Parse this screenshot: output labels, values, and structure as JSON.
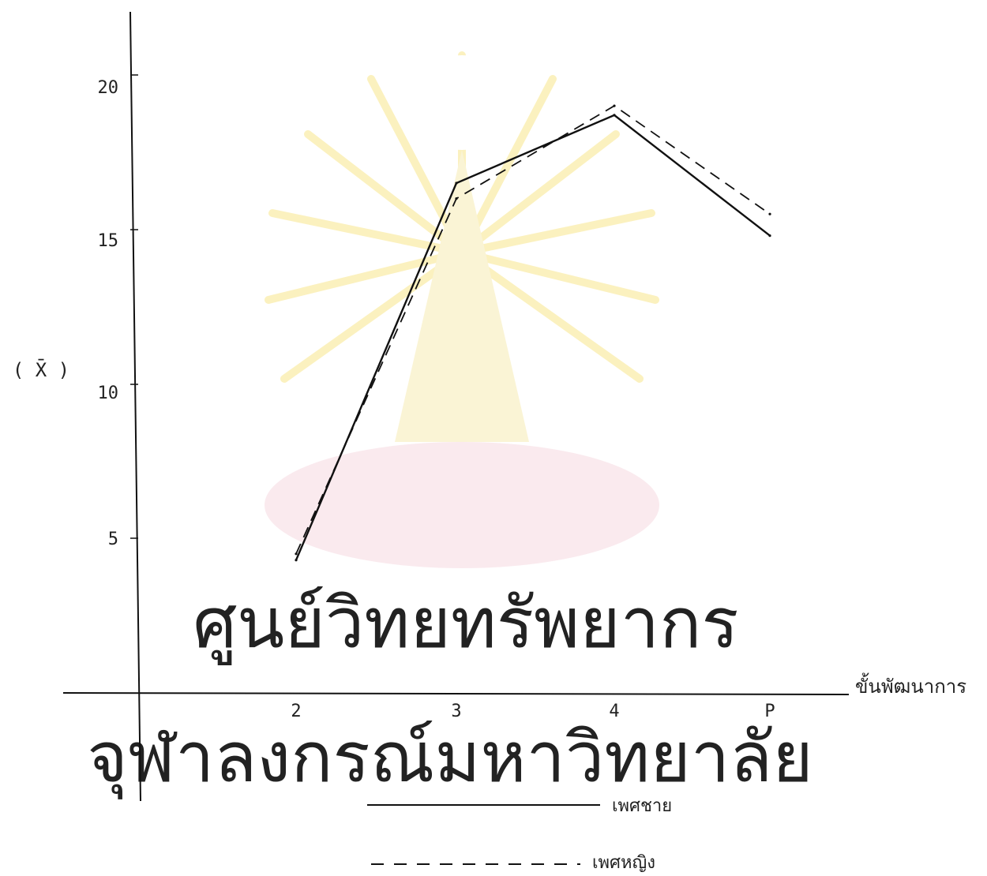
{
  "watermark": {
    "line1": "ศูนย์วิทยทรัพยากร",
    "line2": "จุฬาลงกรณ์มหาวิทยาลัย"
  },
  "chart_data": {
    "type": "line",
    "title": "",
    "xlabel": "ขั้นพัฒนาการ",
    "ylabel": "( X̄ )",
    "categories": [
      "2",
      "3",
      "4",
      "P"
    ],
    "yticks": [
      "5",
      "10",
      "15",
      "20"
    ],
    "ylim": [
      0,
      22.5
    ],
    "grid": false,
    "legend_placement": "bottom-center",
    "series": [
      {
        "name": "เพศชาย",
        "style": "solid",
        "color": "#111111",
        "values": [
          4.3,
          16.5,
          18.7,
          14.8
        ]
      },
      {
        "name": "เพศหญิง",
        "style": "dashed",
        "color": "#111111",
        "values": [
          4.5,
          16.0,
          19.0,
          15.5
        ]
      }
    ]
  }
}
